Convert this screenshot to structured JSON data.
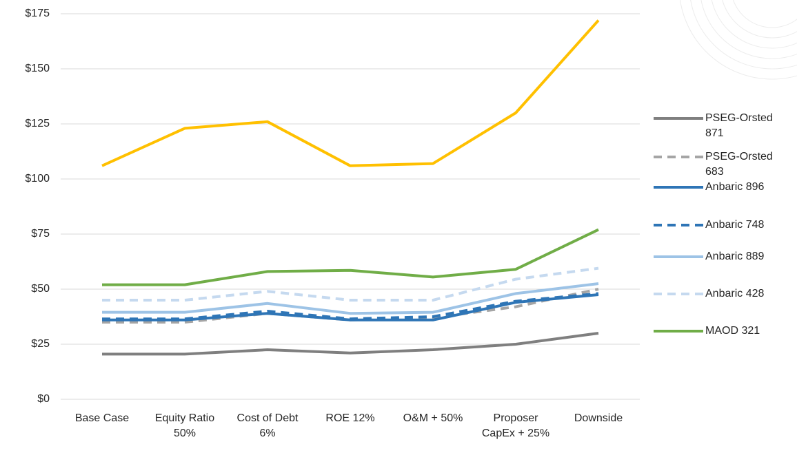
{
  "chart_data": {
    "type": "line",
    "categories": [
      "Base Case",
      "Equity Ratio 50%",
      "Cost of Debt 6%",
      "ROE 12%",
      "O&M + 50%",
      "Proposer CapEx + 25%",
      "Downside"
    ],
    "ylim": [
      0,
      175
    ],
    "yticks": [
      {
        "value": 0,
        "label": "$0"
      },
      {
        "value": 25,
        "label": "$25"
      },
      {
        "value": 50,
        "label": "$50"
      },
      {
        "value": 75,
        "label": "$75"
      },
      {
        "value": 100,
        "label": "$100"
      },
      {
        "value": 125,
        "label": "$125"
      },
      {
        "value": 150,
        "label": "$150"
      },
      {
        "value": 175,
        "label": "$175"
      }
    ],
    "grid": true,
    "series": [
      {
        "name": "PSEG-Orsted 871",
        "color": "#7f7f7f",
        "dashed": false,
        "values": [
          20.5,
          20.5,
          22.5,
          21,
          22.5,
          25,
          30
        ]
      },
      {
        "name": "PSEG-Orsted 683",
        "color": "#a5a5a5",
        "dashed": true,
        "values": [
          35,
          35,
          39,
          36,
          37,
          42,
          50
        ]
      },
      {
        "name": "Anbaric 896",
        "color": "#2e75b6",
        "dashed": false,
        "values": [
          36,
          36,
          39,
          36,
          36,
          44,
          47.5
        ]
      },
      {
        "name": "Anbaric 748",
        "color": "#2e75b6",
        "dashed": true,
        "values": [
          36.5,
          36.5,
          40,
          36.5,
          37.5,
          44.5,
          48
        ]
      },
      {
        "name": "Anbaric 889",
        "color": "#9dc3e6",
        "dashed": false,
        "values": [
          39.5,
          39.5,
          43.5,
          39,
          39.5,
          48,
          52.5
        ]
      },
      {
        "name": "Anbaric 428",
        "color": "#c5d9ef",
        "dashed": true,
        "values": [
          45,
          45,
          49,
          45,
          45,
          54.5,
          59.5
        ]
      },
      {
        "name": "MAOD 321",
        "color": "#70ad47",
        "dashed": false,
        "values": [
          52,
          52,
          58,
          58.5,
          55.5,
          59,
          77
        ]
      },
      {
        "color": "#ffc000",
        "dashed": false,
        "values": [
          106,
          123,
          126,
          106,
          107,
          130,
          172
        ]
      }
    ]
  }
}
